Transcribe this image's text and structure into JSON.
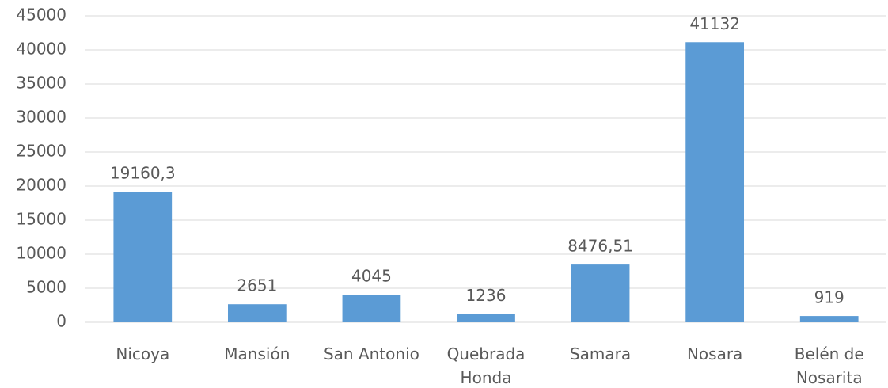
{
  "chart_data": {
    "type": "bar",
    "categories": [
      "Nicoya",
      "Mansión",
      "San Antonio",
      "Quebrada Honda",
      "Samara",
      "Nosara",
      "Belén de Nosarita"
    ],
    "values": [
      19160.3,
      2651,
      4045,
      1236,
      8476.51,
      41132,
      919
    ],
    "value_labels": [
      "19160,3",
      "2651",
      "4045",
      "1236",
      "8476,51",
      "41132",
      "919"
    ],
    "color": "#5b9bd5",
    "ylim": [
      0,
      45000
    ],
    "yticks": [
      0,
      5000,
      10000,
      15000,
      20000,
      25000,
      30000,
      35000,
      40000,
      45000
    ],
    "grid": true
  }
}
